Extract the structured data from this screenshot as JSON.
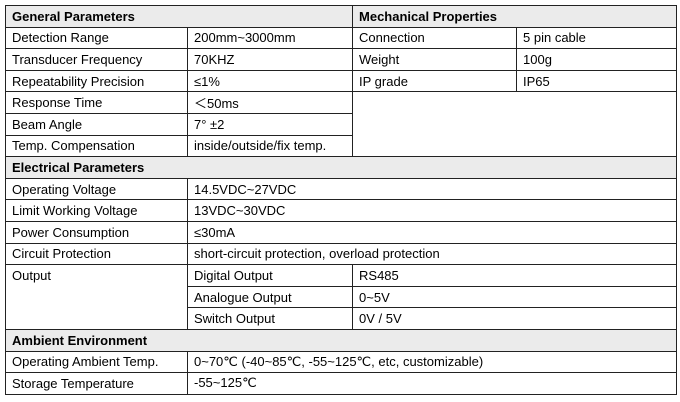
{
  "general": {
    "title": "General Parameters",
    "rows": [
      [
        "Detection Range",
        "200mm~3000mm"
      ],
      [
        "Transducer Frequency",
        "70KHZ"
      ],
      [
        "Repeatability Precision",
        "≤1%"
      ],
      [
        "Response Time",
        "＜50ms"
      ],
      [
        "Beam Angle",
        "7°  ±2"
      ],
      [
        "Temp. Compensation",
        "inside/outside/fix temp."
      ]
    ]
  },
  "mechanical": {
    "title": "Mechanical Properties",
    "rows": [
      [
        "Connection",
        "5 pin cable"
      ],
      [
        "Weight",
        "100g"
      ],
      [
        "IP grade",
        "IP65"
      ]
    ]
  },
  "electrical": {
    "title": "Electrical Parameters",
    "rows": [
      [
        "Operating Voltage",
        "14.5VDC~27VDC"
      ],
      [
        "Limit Working Voltage",
        "13VDC~30VDC"
      ],
      [
        "Power Consumption",
        "≤30mA"
      ],
      [
        "Circuit Protection",
        "short-circuit protection, overload protection"
      ]
    ],
    "output": {
      "label": "Output",
      "rows": [
        [
          "Digital Output",
          "RS485"
        ],
        [
          "Analogue Output",
          "0~5V"
        ],
        [
          "Switch Output",
          "0V / 5V"
        ]
      ]
    }
  },
  "ambient": {
    "title": "Ambient Environment",
    "rows": [
      [
        "Operating Ambient Temp.",
        "0~70℃ (-40~85℃, -55~125℃, etc, customizable)"
      ],
      [
        "Storage Temperature",
        "-55~125℃"
      ]
    ]
  }
}
